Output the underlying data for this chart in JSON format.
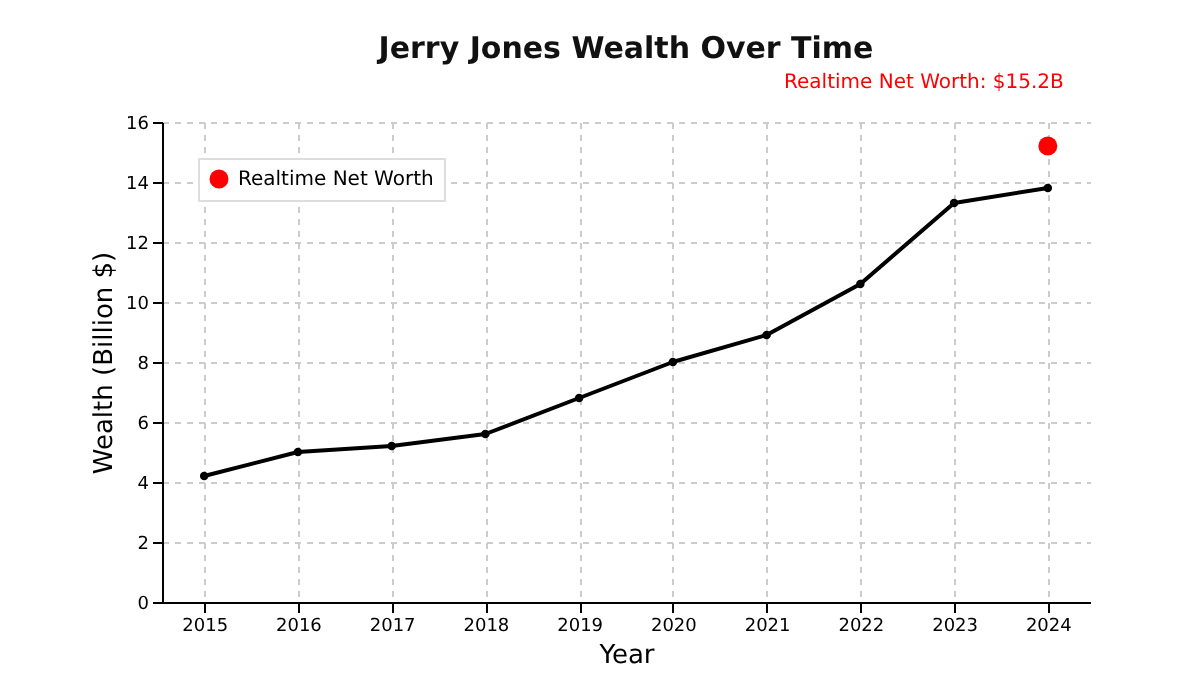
{
  "chart_data": {
    "type": "line",
    "title": "Jerry Jones Wealth Over Time",
    "xlabel": "Year",
    "ylabel": "Wealth (Billion $)",
    "x": [
      2015,
      2016,
      2017,
      2018,
      2019,
      2020,
      2021,
      2022,
      2023,
      2024
    ],
    "series": [
      {
        "type": "line",
        "color": "#000000",
        "marker": "circle",
        "values": [
          4.2,
          5.0,
          5.2,
          5.6,
          6.8,
          8.0,
          8.9,
          10.6,
          13.3,
          13.8
        ]
      },
      {
        "type": "scatter",
        "name": "Realtime Net Worth",
        "color": "#ff0000",
        "x": [
          2024
        ],
        "values": [
          15.2
        ]
      }
    ],
    "xlim": [
      2014.55,
      2024.45
    ],
    "xticks": [
      2015,
      2016,
      2017,
      2018,
      2019,
      2020,
      2021,
      2022,
      2023,
      2024
    ],
    "ylim": [
      0,
      16
    ],
    "yticks": [
      0,
      2,
      4,
      6,
      8,
      10,
      12,
      14,
      16
    ],
    "grid": true,
    "legend": "top left",
    "line_style": "solid",
    "annotations": [
      {
        "text": "Realtime Net Worth: $15.2B",
        "x": 2024,
        "y": 15.2
      }
    ]
  }
}
